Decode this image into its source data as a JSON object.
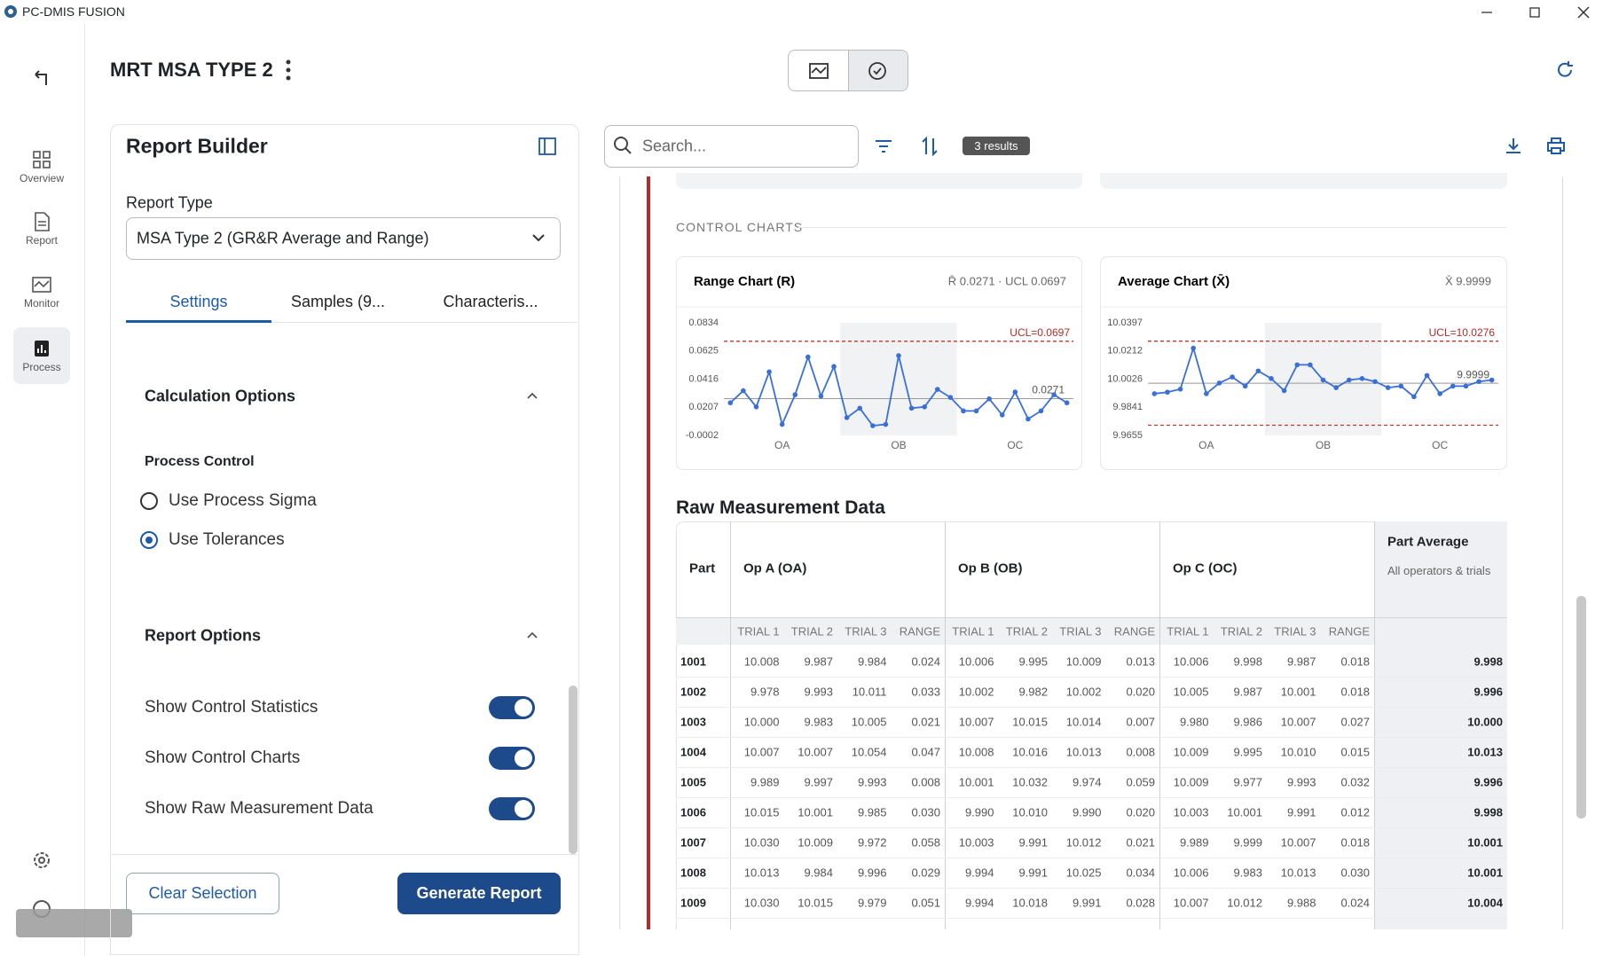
{
  "app_title": "PC-DMIS FUSION",
  "nav": {
    "items": [
      "Overview",
      "Report",
      "Monitor",
      "Process"
    ],
    "active": 3
  },
  "header": {
    "title": "MRT MSA TYPE 2"
  },
  "report_builder": {
    "title": "Report Builder",
    "report_type_label": "Report Type",
    "report_type_value": "MSA Type 2 (GR&R Average and Range)",
    "tabs": [
      "Settings",
      "Samples (9...",
      "Characteris..."
    ],
    "active_tab": 0,
    "calculation_options": "Calculation Options",
    "process_control": "Process Control",
    "radios": [
      {
        "label": "Use Process Sigma",
        "selected": false
      },
      {
        "label": "Use Tolerances",
        "selected": true
      }
    ],
    "report_options": "Report Options",
    "toggles": [
      {
        "label": "Show Control Statistics",
        "on": true
      },
      {
        "label": "Show Control Charts",
        "on": true
      },
      {
        "label": "Show Raw Measurement Data",
        "on": true
      }
    ],
    "clear_button": "Clear Selection",
    "generate_button": "Generate Report"
  },
  "toolbar": {
    "search_placeholder": "Search...",
    "results": "3 results"
  },
  "control_charts": {
    "heading": "CONTROL CHARTS",
    "groups": [
      "OA",
      "OB",
      "OC"
    ],
    "range_chart": {
      "title": "Range Chart (R)",
      "summary": "R̄ 0.0271 · UCL 0.0697",
      "ylim": [
        -0.0002,
        0.0834
      ],
      "yticks": [
        0.0834,
        0.0625,
        0.0416,
        0.0207,
        -0.0002
      ],
      "ucl": 0.0697,
      "ucl_label": "UCL=0.0697",
      "center": 0.0271,
      "values": [
        0.024,
        0.033,
        0.021,
        0.047,
        0.008,
        0.03,
        0.058,
        0.029,
        0.051,
        0.013,
        0.02,
        0.007,
        0.008,
        0.059,
        0.02,
        0.021,
        0.034,
        0.028,
        0.018,
        0.018,
        0.027,
        0.015,
        0.032,
        0.012,
        0.018,
        0.03,
        0.024
      ]
    },
    "average_chart": {
      "title": "Average Chart (X̄)",
      "summary": "X̄ 9.9999",
      "ylim": [
        9.9655,
        10.0397
      ],
      "yticks": [
        10.0397,
        10.0212,
        10.0026,
        9.9841,
        9.9655
      ],
      "ucl": 10.0276,
      "ucl_label": "UCL=10.0276",
      "lcl": 9.9722,
      "center": 9.9999,
      "values": [
        9.993,
        9.994,
        9.996,
        10.023,
        9.993,
        10.0,
        10.004,
        9.998,
        10.008,
        10.003,
        9.995,
        10.012,
        10.012,
        10.002,
        9.997,
        10.002,
        10.003,
        10.001,
        9.997,
        9.998,
        9.991,
        10.005,
        9.993,
        9.998,
        9.998,
        10.001,
        10.002
      ]
    }
  },
  "raw_data": {
    "title": "Raw Measurement Data",
    "part_header": "Part",
    "operators": [
      "Op A (OA)",
      "Op B (OB)",
      "Op C (OC)"
    ],
    "part_average_header": "Part Average",
    "part_average_sub": "All operators & trials",
    "subheaders": [
      "TRIAL 1",
      "TRIAL 2",
      "TRIAL 3",
      "RANGE"
    ],
    "rows": [
      [
        "1001",
        "10.008",
        "9.987",
        "9.984",
        "0.024",
        "10.006",
        "9.995",
        "10.009",
        "0.013",
        "10.006",
        "9.998",
        "9.987",
        "0.018",
        "9.998"
      ],
      [
        "1002",
        "9.978",
        "9.993",
        "10.011",
        "0.033",
        "10.002",
        "9.982",
        "10.002",
        "0.020",
        "10.005",
        "9.987",
        "10.001",
        "0.018",
        "9.996"
      ],
      [
        "1003",
        "10.000",
        "9.983",
        "10.005",
        "0.021",
        "10.007",
        "10.015",
        "10.014",
        "0.007",
        "9.980",
        "9.986",
        "10.007",
        "0.027",
        "10.000"
      ],
      [
        "1004",
        "10.007",
        "10.007",
        "10.054",
        "0.047",
        "10.008",
        "10.016",
        "10.013",
        "0.008",
        "10.009",
        "9.995",
        "10.010",
        "0.015",
        "10.013"
      ],
      [
        "1005",
        "9.989",
        "9.997",
        "9.993",
        "0.008",
        "10.001",
        "10.032",
        "9.974",
        "0.059",
        "10.009",
        "9.977",
        "9.993",
        "0.032",
        "9.996"
      ],
      [
        "1006",
        "10.015",
        "10.001",
        "9.985",
        "0.030",
        "9.990",
        "10.010",
        "9.990",
        "0.020",
        "10.003",
        "10.001",
        "9.991",
        "0.012",
        "9.998"
      ],
      [
        "1007",
        "10.030",
        "10.009",
        "9.972",
        "0.058",
        "10.003",
        "9.991",
        "10.012",
        "0.021",
        "9.989",
        "9.999",
        "10.007",
        "0.018",
        "10.001"
      ],
      [
        "1008",
        "10.013",
        "9.984",
        "9.996",
        "0.029",
        "9.994",
        "9.991",
        "10.025",
        "0.034",
        "10.006",
        "9.983",
        "10.013",
        "0.030",
        "10.001"
      ],
      [
        "1009",
        "10.030",
        "10.015",
        "9.979",
        "0.051",
        "9.994",
        "10.018",
        "9.991",
        "0.028",
        "10.007",
        "10.012",
        "9.988",
        "0.024",
        "10.004"
      ]
    ]
  }
}
